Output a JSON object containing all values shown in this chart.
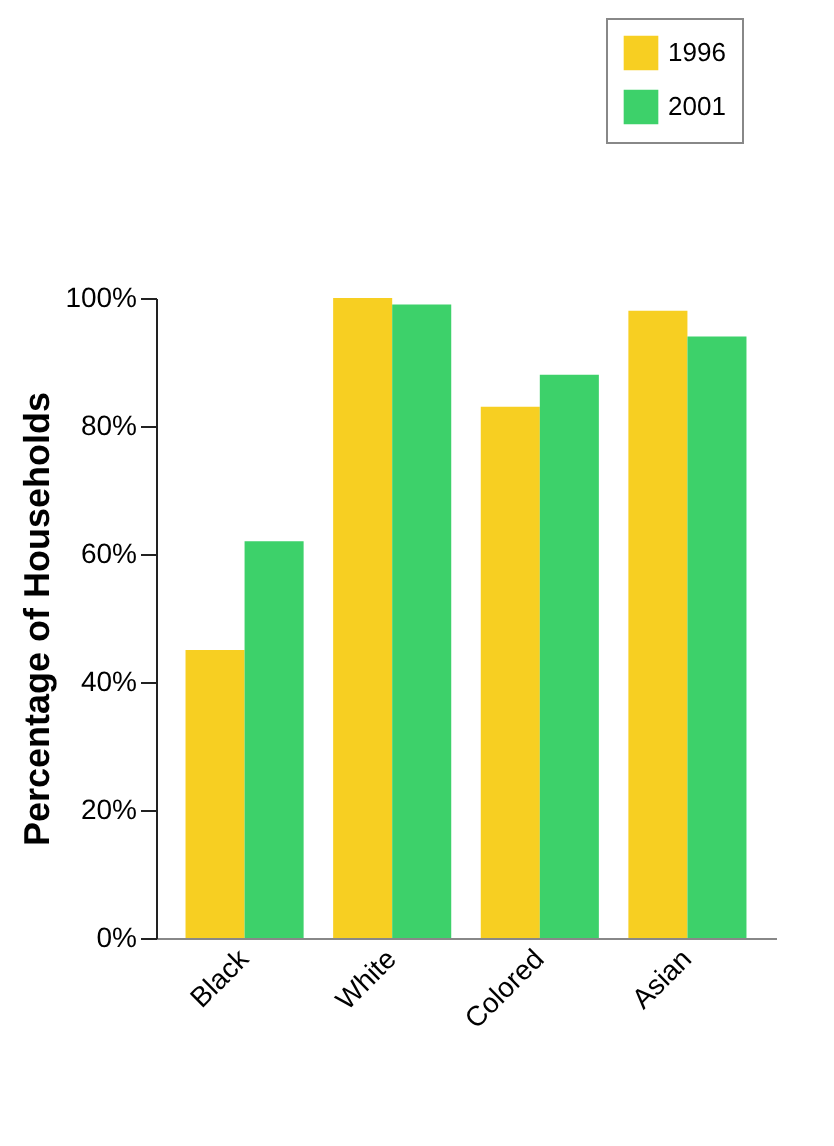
{
  "chart_data": {
    "type": "bar",
    "ylabel": "Percentage of Households",
    "categories": [
      "Black",
      "White",
      "Colored",
      "Asian"
    ],
    "series": [
      {
        "name": "1996",
        "color": "#f7cf22",
        "values": [
          45,
          100,
          83,
          98
        ]
      },
      {
        "name": "2001",
        "color": "#3dd16a",
        "values": [
          62,
          99,
          88,
          94
        ]
      }
    ],
    "ylim": [
      0,
      100
    ],
    "yticks": [
      {
        "value": 0,
        "label": "0%"
      },
      {
        "value": 20,
        "label": "20%"
      },
      {
        "value": 40,
        "label": "40%"
      },
      {
        "value": 60,
        "label": "60%"
      },
      {
        "value": 80,
        "label": "80%"
      },
      {
        "value": 100,
        "label": "100%"
      }
    ],
    "grid": false,
    "legend": "top right"
  }
}
